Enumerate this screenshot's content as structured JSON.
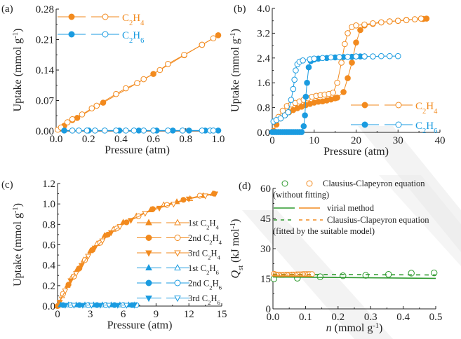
{
  "colors": {
    "c2h4": "#f28a1e",
    "c2h6": "#1a9be0",
    "green": "#2f9a2f",
    "axis": "#222222"
  },
  "chart_data": [
    {
      "panel": "(a)",
      "type": "line",
      "xlabel": "Pressure (atm)",
      "ylabel": "Uptake (mmol g-1)",
      "xlim": [
        0.0,
        1.0
      ],
      "ylim": [
        0.0,
        0.28
      ],
      "xticks": [
        "0.0",
        "0.2",
        "0.4",
        "0.6",
        "0.8",
        "1.0"
      ],
      "yticks": [
        "0.00",
        "0.07",
        "0.14",
        "0.21",
        "0.28"
      ],
      "legend": [
        "C2H4",
        "C2H6"
      ],
      "legend_position": "top-left",
      "series": [
        {
          "name": "C2H4 adsorption",
          "color_key": "c2h4",
          "filled": true,
          "x": [
            0.05,
            0.1,
            0.13,
            0.29,
            0.5,
            0.6,
            0.79,
            0.9,
            1.0
          ],
          "y": [
            0.012,
            0.025,
            0.03,
            0.065,
            0.11,
            0.131,
            0.174,
            0.198,
            0.22
          ]
        },
        {
          "name": "C2H4 desorption",
          "color_key": "c2h4",
          "filled": false,
          "x": [
            0.01,
            0.03,
            0.07,
            0.1,
            0.16,
            0.22,
            0.25,
            0.37,
            0.43,
            0.5,
            0.54,
            0.64,
            0.69,
            0.79,
            0.9,
            0.97
          ],
          "y": [
            0.003,
            0.008,
            0.02,
            0.027,
            0.038,
            0.052,
            0.058,
            0.085,
            0.098,
            0.11,
            0.119,
            0.14,
            0.154,
            0.175,
            0.198,
            0.213
          ]
        },
        {
          "name": "C2H6 adsorption",
          "color_key": "c2h6",
          "filled": true,
          "x": [
            0.05,
            0.2,
            0.39,
            0.51,
            0.62,
            0.72,
            0.82,
            0.92,
            1.0
          ],
          "y": [
            0.001,
            0.001,
            0.001,
            0.001,
            0.001,
            0.001,
            0.001,
            0.001,
            0.001
          ]
        },
        {
          "name": "C2H6 desorption",
          "color_key": "c2h6",
          "filled": false,
          "x": [
            0.1,
            0.14,
            0.19,
            0.24,
            0.3,
            0.37,
            0.43,
            0.48,
            0.54,
            0.6,
            0.69,
            0.78,
            0.9,
            0.95,
            0.97
          ],
          "y": [
            0.001,
            0.001,
            0.001,
            0.001,
            0.001,
            0.001,
            0.001,
            0.001,
            0.001,
            0.001,
            0.001,
            0.001,
            0.001,
            0.001,
            0.001
          ]
        }
      ]
    },
    {
      "panel": "(b)",
      "type": "line",
      "xlabel": "Pressure (atm)",
      "ylabel": "Uptake (mmol g-1)",
      "xlim": [
        0,
        40
      ],
      "ylim": [
        0.0,
        4.0
      ],
      "xticks": [
        "0",
        "10",
        "20",
        "30",
        "40"
      ],
      "yticks": [
        "0.0",
        "0.8",
        "1.6",
        "2.4",
        "3.2",
        "4.0"
      ],
      "legend": [
        "C2H4",
        "C2H6"
      ],
      "legend_position": "bottom-right",
      "series": [
        {
          "name": "C2H4 adsorption",
          "color_key": "c2h4",
          "filled": true,
          "x": [
            0.3,
            1,
            2,
            3,
            4,
            5,
            6,
            7,
            8,
            9,
            10,
            11,
            12,
            13,
            14,
            15,
            15.5,
            17,
            18,
            19,
            20,
            21,
            22,
            24,
            26,
            28,
            30,
            32,
            34,
            36,
            36.8
          ],
          "y": [
            0.05,
            0.25,
            0.45,
            0.55,
            0.65,
            0.72,
            0.78,
            0.83,
            0.88,
            0.92,
            0.96,
            0.99,
            1.0,
            1.03,
            1.06,
            1.1,
            1.12,
            1.3,
            1.75,
            2.25,
            2.9,
            3.3,
            3.45,
            3.5,
            3.55,
            3.58,
            3.6,
            3.63,
            3.65,
            3.66,
            3.67
          ]
        },
        {
          "name": "C2H4 desorption",
          "color_key": "c2h4",
          "filled": false,
          "x": [
            0.5,
            1.5,
            2.5,
            3.5,
            4.5,
            5.5,
            6.5,
            7.5,
            8.5,
            9.5,
            10.5,
            11.5,
            12.5,
            13.5,
            14.5,
            15.5,
            16.5,
            17.3,
            18,
            19,
            20,
            22,
            24,
            26,
            28,
            30,
            32,
            34,
            35.5
          ],
          "y": [
            0.35,
            0.5,
            0.7,
            0.85,
            0.9,
            0.95,
            1.0,
            1.05,
            1.1,
            1.15,
            1.18,
            1.2,
            1.22,
            1.24,
            1.28,
            1.6,
            2.25,
            2.85,
            3.2,
            3.4,
            3.45,
            3.48,
            3.52,
            3.55,
            3.58,
            3.6,
            3.62,
            3.65,
            3.67
          ]
        },
        {
          "name": "C2H6 adsorption",
          "color_key": "c2h6",
          "filled": true,
          "x": [
            0,
            0.5,
            1,
            1.5,
            2,
            2.5,
            3,
            3.5,
            4,
            4.5,
            5,
            5.5,
            6,
            6.5,
            7,
            7.5,
            7.8,
            8,
            8.3,
            8.7,
            9.2,
            10,
            11,
            13,
            15,
            17,
            19,
            21,
            22
          ],
          "y": [
            0.01,
            0.01,
            0.01,
            0.01,
            0.01,
            0.01,
            0.01,
            0.01,
            0.01,
            0.01,
            0.01,
            0.01,
            0.01,
            0.01,
            0.01,
            0.2,
            0.55,
            1.15,
            1.6,
            2.1,
            2.3,
            2.35,
            2.38,
            2.4,
            2.42,
            2.43,
            2.44,
            2.45,
            2.45
          ]
        },
        {
          "name": "C2H6 desorption",
          "color_key": "c2h6",
          "filled": false,
          "x": [
            0.3,
            1,
            2,
            3,
            3.8,
            4.5,
            5,
            5.3,
            5.6,
            6,
            6.5,
            7.3,
            9,
            10,
            12,
            14,
            16,
            18,
            20,
            22,
            24,
            26,
            28,
            30
          ],
          "y": [
            0.35,
            0.4,
            0.45,
            0.55,
            0.65,
            1.05,
            1.4,
            1.7,
            2.0,
            2.2,
            2.28,
            2.32,
            2.36,
            2.38,
            2.4,
            2.42,
            2.43,
            2.44,
            2.45,
            2.45,
            2.45,
            2.46,
            2.46,
            2.46
          ]
        }
      ]
    },
    {
      "panel": "(c)",
      "type": "line",
      "xlabel": "Pressure (atm)",
      "ylabel": "Uptake (mmol g-1)",
      "xlim": [
        0,
        15
      ],
      "ylim": [
        0.0,
        1.2
      ],
      "xticks": [
        "0",
        "3",
        "6",
        "9",
        "12",
        "15"
      ],
      "yticks": [
        "0.0",
        "0.2",
        "0.4",
        "0.6",
        "0.8",
        "1.0",
        "1.2"
      ],
      "legend": [
        "1st C2H4",
        "2nd C2H4",
        "3rd C2H4",
        "1st C2H6",
        "2nd C2H6",
        "3rd C2H6"
      ],
      "legend_position": "center-right",
      "series": [
        {
          "name": "1st C2H4",
          "color_key": "c2h4",
          "marker": "triangle-up",
          "x": [
            0,
            0.4,
            0.9,
            1.3,
            1.8,
            2.4,
            3.0,
            3.6,
            4.3,
            5.1,
            6.0,
            7.2,
            8.5,
            9.7,
            10.9,
            12.1,
            13.3,
            14.2
          ],
          "y": [
            0.0,
            0.1,
            0.2,
            0.28,
            0.36,
            0.45,
            0.54,
            0.61,
            0.69,
            0.75,
            0.82,
            0.88,
            0.94,
            0.99,
            1.02,
            1.05,
            1.08,
            1.1
          ]
        },
        {
          "name": "2nd C2H4",
          "color_key": "c2h4",
          "marker": "circle",
          "x": [
            0,
            0.5,
            1.0,
            1.5,
            2.0,
            2.5,
            3.2,
            3.9,
            4.6,
            5.4,
            6.3,
            7.4,
            8.7,
            10.0,
            11.5,
            13.0,
            14.3
          ],
          "y": [
            0.0,
            0.12,
            0.21,
            0.29,
            0.37,
            0.45,
            0.55,
            0.62,
            0.7,
            0.76,
            0.82,
            0.88,
            0.95,
            0.99,
            1.04,
            1.08,
            1.1
          ]
        },
        {
          "name": "3rd C2H4",
          "color_key": "c2h4",
          "marker": "triangle-down",
          "x": [
            0.2,
            0.7,
            1.2,
            1.7,
            2.2,
            2.8,
            3.4,
            4.1,
            4.9,
            5.7,
            6.7,
            8.0,
            9.3,
            10.6,
            12.0,
            13.5,
            14.4
          ],
          "y": [
            0.04,
            0.15,
            0.25,
            0.32,
            0.4,
            0.49,
            0.57,
            0.64,
            0.72,
            0.78,
            0.84,
            0.91,
            0.96,
            1.0,
            1.05,
            1.08,
            1.1
          ]
        },
        {
          "name": "1st C2H6",
          "color_key": "c2h6",
          "marker": "triangle-up",
          "x": [
            0.3,
            1.0,
            1.7,
            2.5,
            3.3,
            4.1,
            4.9,
            5.7,
            6.5,
            7.0
          ],
          "y": [
            0.01,
            0.01,
            0.01,
            0.01,
            0.01,
            0.01,
            0.01,
            0.01,
            0.01,
            0.01
          ]
        },
        {
          "name": "2nd C2H6",
          "color_key": "c2h6",
          "marker": "circle",
          "x": [
            0.5,
            1.2,
            2.0,
            2.8,
            3.6,
            4.4,
            5.2,
            6.0,
            6.8,
            7.2
          ],
          "y": [
            0.01,
            0.01,
            0.01,
            0.01,
            0.01,
            0.01,
            0.01,
            0.01,
            0.01,
            0.01
          ]
        },
        {
          "name": "3rd C2H6",
          "color_key": "c2h6",
          "marker": "triangle-down",
          "x": [
            0.7,
            1.5,
            2.3,
            3.1,
            3.9,
            4.7,
            5.5,
            6.3,
            7.0
          ],
          "y": [
            0.01,
            0.01,
            0.01,
            0.01,
            0.01,
            0.01,
            0.01,
            0.01,
            0.01
          ]
        }
      ]
    },
    {
      "panel": "(d)",
      "type": "scatter",
      "xlabel": "n (mmol g-1)",
      "ylabel": "Qst (kJ mol-1)",
      "xlim": [
        0.0,
        0.5
      ],
      "ylim": [
        0,
        60
      ],
      "xticks": [
        "0.0",
        "0.1",
        "0.2",
        "0.3",
        "0.4",
        "0.5"
      ],
      "yticks": [
        "0",
        "15",
        "30",
        "45",
        "60"
      ],
      "legend": [
        "Clausius-Clapeyron equation (without fitting)",
        "virial method",
        "Clausius-Clapeyron equation (fitted by the suitable model)"
      ],
      "legend_position": "top",
      "series": [
        {
          "name": "C-C without fitting (green)",
          "color_key": "green",
          "kind": "open-circles",
          "x": [
            0.003,
            0.075,
            0.145,
            0.215,
            0.285,
            0.355,
            0.425,
            0.495
          ],
          "y": [
            15.0,
            15.3,
            16.0,
            16.5,
            16.7,
            17.2,
            17.8,
            17.9
          ]
        },
        {
          "name": "C-C without fitting (orange)",
          "color_key": "c2h4",
          "kind": "open-circles",
          "x": [
            0.003,
            0.008,
            0.013,
            0.018,
            0.023,
            0.028,
            0.033,
            0.038,
            0.043,
            0.048,
            0.053,
            0.058,
            0.063,
            0.068,
            0.073,
            0.078,
            0.083,
            0.088,
            0.093,
            0.098,
            0.103,
            0.108,
            0.113,
            0.12
          ],
          "y": [
            17.5,
            17.2,
            17.0,
            17.0,
            16.9,
            16.9,
            16.9,
            17.0,
            17.0,
            17.0,
            17.0,
            17.1,
            17.1,
            17.1,
            17.2,
            17.2,
            17.2,
            17.2,
            17.3,
            17.3,
            17.3,
            17.3,
            17.3,
            17.3
          ]
        },
        {
          "name": "virial method (green)",
          "color_key": "green",
          "kind": "solid-line",
          "x": [
            0.0,
            0.5
          ],
          "y": [
            15.9,
            15.2
          ]
        },
        {
          "name": "virial method (orange)",
          "color_key": "c2h4",
          "kind": "solid-line",
          "x": [
            0.0,
            0.12
          ],
          "y": [
            16.4,
            16.2
          ]
        },
        {
          "name": "C-C fitted (green)",
          "color_key": "green",
          "kind": "dashed-line",
          "x": [
            0.0,
            0.5
          ],
          "y": [
            17.2,
            16.9
          ]
        },
        {
          "name": "C-C fitted (orange)",
          "color_key": "c2h4",
          "kind": "dashed-line",
          "x": [
            0.0,
            0.12
          ],
          "y": [
            17.0,
            17.0
          ]
        }
      ]
    }
  ]
}
